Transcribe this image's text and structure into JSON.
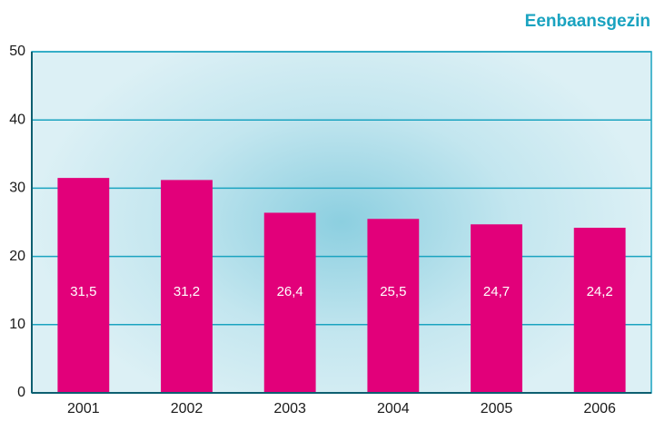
{
  "chart_data": {
    "type": "bar",
    "title": "Eenbaansgezin",
    "categories": [
      "2001",
      "2002",
      "2003",
      "2004",
      "2005",
      "2006"
    ],
    "values": [
      31.5,
      31.2,
      26.4,
      25.5,
      24.7,
      24.2
    ],
    "value_labels": [
      "31,5",
      "31,2",
      "26,4",
      "25,5",
      "24,7",
      "24,2"
    ],
    "color": "#e2007a",
    "ylim": [
      0,
      50
    ],
    "yticks": [
      0,
      10,
      20,
      30,
      40,
      50
    ],
    "grid": true
  }
}
